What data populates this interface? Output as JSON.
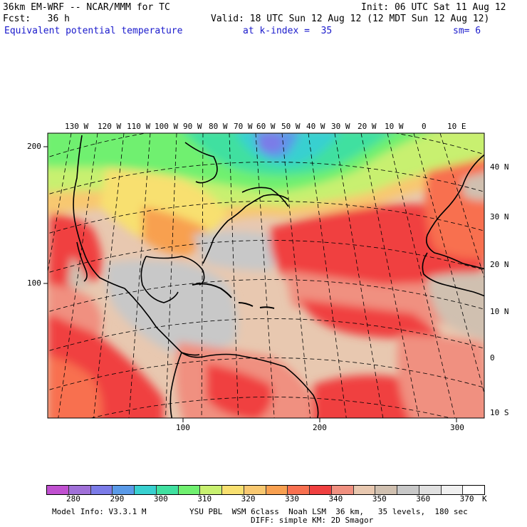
{
  "header": {
    "model_line": "36km EM-WRF -- NCAR/MMM for TC",
    "init_line": "Init: 06 UTC Sat 11 Aug 12",
    "fcst_line": "Fcst:   36 h",
    "valid_line": "Valid: 18 UTC Sun 12 Aug 12 (12 MDT Sun 12 Aug 12)",
    "field_label": "Equivalent potential temperature",
    "level_label": "at k-index =  35",
    "smoothing_label": "sm= 6"
  },
  "map": {
    "longitude_labels": [
      "130 W",
      "120 W",
      "110 W",
      "100 W",
      "90 W",
      "80 W",
      "70 W",
      "60 W",
      "50 W",
      "40 W",
      "30 W",
      "20 W",
      "10 W",
      "0",
      "10 E"
    ],
    "latitude_labels": [
      "40 N",
      "30 N",
      "20 N",
      "10 N",
      "0",
      "10 S"
    ],
    "grid_x_labels": [
      "100",
      "200",
      "300"
    ],
    "grid_y_labels": [
      "200",
      "100"
    ],
    "colors": {
      "frame": "#000000",
      "grid_dash": "#000000",
      "coast": "#000000"
    }
  },
  "colorbar": {
    "tick_labels": [
      "280",
      "290",
      "300",
      "310",
      "320",
      "330",
      "340",
      "350",
      "360",
      "370"
    ],
    "unit": "K",
    "colors": [
      "#c050d0",
      "#a070d8",
      "#7b7be8",
      "#5a9ae8",
      "#38d0d0",
      "#40e0a0",
      "#70f070",
      "#c8f070",
      "#f8e070",
      "#f8c870",
      "#f8a050",
      "#f87050",
      "#f04040",
      "#f09080",
      "#e8c8b0",
      "#d0c0b0",
      "#c8c8c8",
      "#e0e0e0",
      "#f0f0f0",
      "#ffffff"
    ]
  },
  "footer": {
    "model_info": "Model Info: V3.3.1 M",
    "physics": "YSU PBL  WSM 6class  Noah LSM  36 km,   35 levels,  180 sec",
    "diffusion": "DIFF: simple KM: 2D Smagor"
  }
}
